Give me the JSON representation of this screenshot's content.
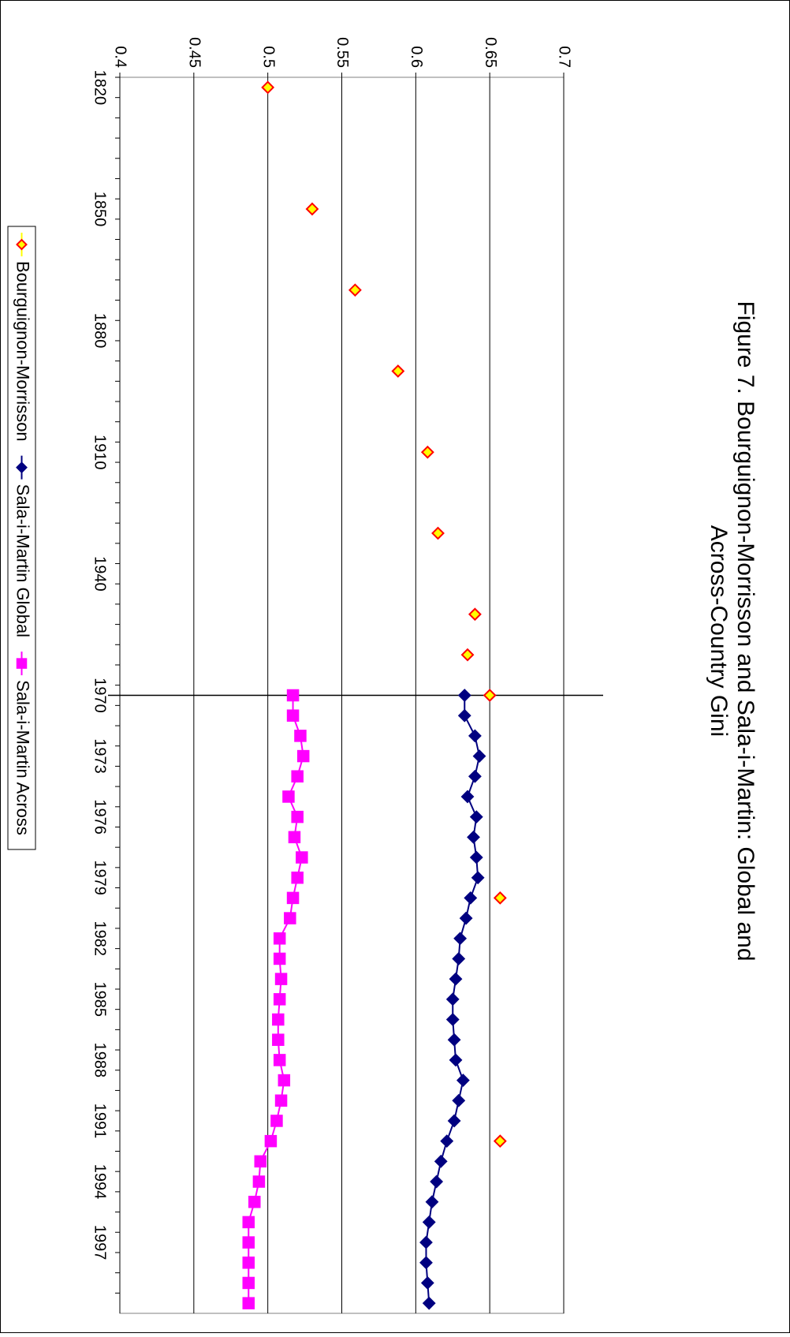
{
  "chart_data": {
    "type": "line",
    "title": "Figure 7. Bourguignon-Morrisson and Sala-i-Martin: Global and Across-Country Gini",
    "categories": [
      "1820",
      null,
      null,
      null,
      null,
      null,
      "1850",
      null,
      null,
      null,
      null,
      null,
      "1880",
      null,
      null,
      null,
      null,
      null,
      "1910",
      null,
      null,
      null,
      null,
      null,
      "1940",
      null,
      null,
      null,
      null,
      null,
      "1970",
      null,
      null,
      "1973",
      null,
      null,
      "1976",
      null,
      null,
      "1979",
      null,
      null,
      "1982",
      null,
      null,
      "1985",
      null,
      null,
      "1988",
      null,
      null,
      "1991",
      null,
      null,
      "1994",
      null,
      null,
      "1997",
      null,
      null,
      null
    ],
    "series": [
      {
        "name": "Bourguignon-Morrisson",
        "color": "#ffff00",
        "marker": "diamond",
        "marker_edge": "#ff0000",
        "line": false,
        "values": [
          0.5,
          null,
          null,
          null,
          null,
          null,
          0.53,
          null,
          null,
          null,
          0.559,
          null,
          null,
          null,
          0.588,
          null,
          null,
          null,
          0.608,
          null,
          null,
          null,
          0.615,
          null,
          null,
          null,
          0.64,
          null,
          0.635,
          null,
          0.65,
          null,
          null,
          null,
          null,
          null,
          null,
          null,
          null,
          null,
          0.657,
          null,
          null,
          null,
          null,
          null,
          null,
          null,
          null,
          null,
          null,
          null,
          0.657,
          null,
          null,
          null,
          null,
          null,
          null,
          null,
          null
        ]
      },
      {
        "name": "Sala-i-Martin Global",
        "color": "#000080",
        "marker": "diamond",
        "marker_edge": "#000080",
        "line": true,
        "values": [
          null,
          null,
          null,
          null,
          null,
          null,
          null,
          null,
          null,
          null,
          null,
          null,
          null,
          null,
          null,
          null,
          null,
          null,
          null,
          null,
          null,
          null,
          null,
          null,
          null,
          null,
          null,
          null,
          null,
          null,
          0.633,
          0.633,
          0.64,
          0.643,
          0.64,
          0.635,
          0.641,
          0.639,
          0.641,
          0.642,
          0.637,
          0.634,
          0.63,
          0.629,
          0.627,
          0.625,
          0.625,
          0.626,
          0.627,
          0.632,
          0.629,
          0.626,
          0.621,
          0.617,
          0.614,
          0.611,
          0.609,
          0.607,
          0.607,
          0.608,
          0.609
        ]
      },
      {
        "name": "Sala-i-Martin Across",
        "color": "#ff00ff",
        "marker": "square",
        "marker_edge": "#ff00ff",
        "line": true,
        "values": [
          null,
          null,
          null,
          null,
          null,
          null,
          null,
          null,
          null,
          null,
          null,
          null,
          null,
          null,
          null,
          null,
          null,
          null,
          null,
          null,
          null,
          null,
          null,
          null,
          null,
          null,
          null,
          null,
          null,
          null,
          0.517,
          0.517,
          0.522,
          0.524,
          0.52,
          0.514,
          0.52,
          0.518,
          0.523,
          0.52,
          0.517,
          0.515,
          0.508,
          0.508,
          0.509,
          0.508,
          0.507,
          0.507,
          0.508,
          0.511,
          0.509,
          0.506,
          0.502,
          0.495,
          0.494,
          0.491,
          0.487,
          0.487,
          0.487,
          0.487,
          0.487
        ]
      }
    ],
    "ylim": [
      0.4,
      0.7
    ],
    "yticks": [
      0.4,
      0.45,
      0.5,
      0.55,
      0.6,
      0.65,
      0.7
    ],
    "grid": true,
    "legend": "bottom",
    "rotated": true,
    "marker_line_category": "1970"
  }
}
